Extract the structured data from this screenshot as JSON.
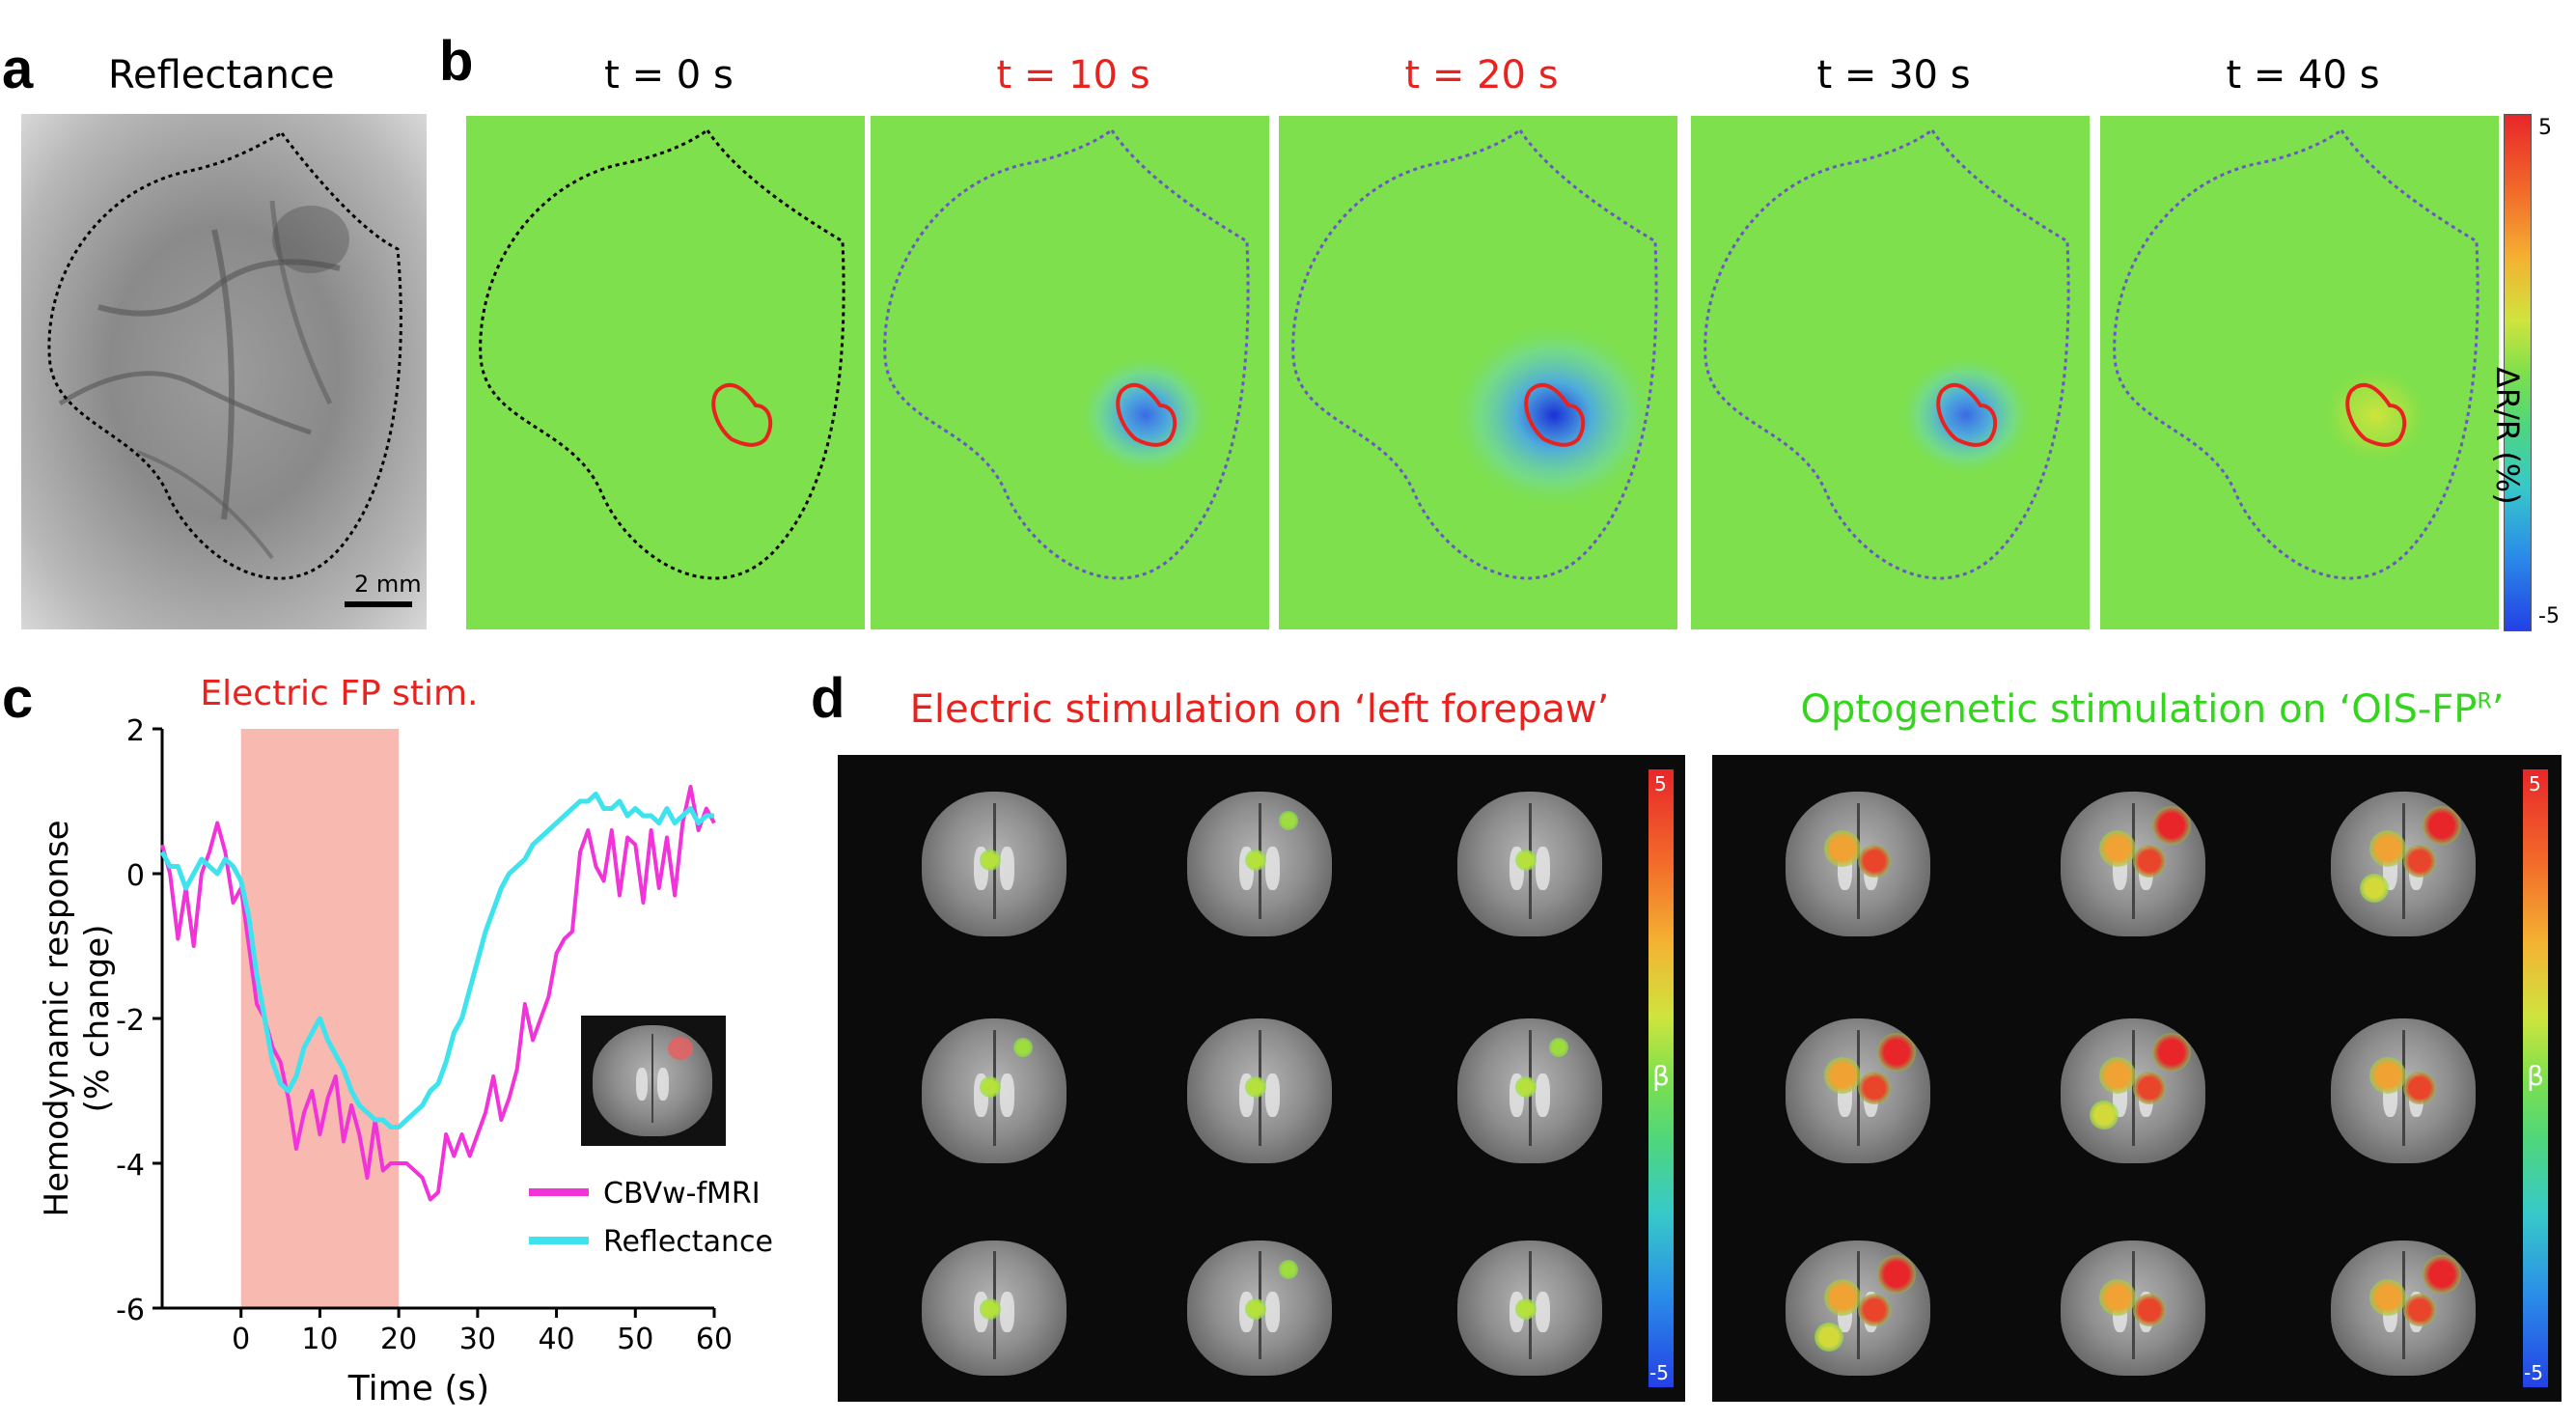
{
  "panel_labels": {
    "a": "a",
    "b": "b",
    "c": "c",
    "d": "d"
  },
  "panel_a": {
    "title": "Reflectance",
    "scale_bar": "2 mm"
  },
  "panel_b": {
    "times": [
      "t = 0 s",
      "t = 10 s",
      "t = 20 s",
      "t = 30 s",
      "t = 40 s"
    ],
    "time_colors": [
      "#000000",
      "#e8231f",
      "#e8231f",
      "#000000",
      "#000000"
    ],
    "response_level": [
      0,
      0.45,
      1.0,
      0.45,
      -0.25
    ],
    "colorbar": {
      "max": "5",
      "min": "-5",
      "label": "ΔR/R (%)"
    }
  },
  "panel_c": {
    "stim_label": "Electric FP stim.",
    "legend": [
      "CBVw-fMRI",
      "Reflectance"
    ]
  },
  "panel_d": {
    "left_title": "Electric stimulation on ‘left forepaw’",
    "right_title_main": "Optogenetic stimulation on ‘OIS-FP",
    "right_title_sup": "R",
    "right_title_end": "’",
    "colorbar": {
      "max": "5",
      "min": "-5",
      "label": "β"
    }
  },
  "colors": {
    "red_text": "#e8231f",
    "green_text": "#33d61c",
    "fmri": "#f233d9",
    "reflectance": "#3ee3ee",
    "stim_shade": "#f7b9b0"
  },
  "chart_data": {
    "type": "line",
    "title": "",
    "xlabel": "Time (s)",
    "ylabel": "Hemodynamic response (% change)",
    "xlim": [
      -10,
      60
    ],
    "ylim": [
      -6,
      2
    ],
    "xticks": [
      0,
      10,
      20,
      30,
      40,
      50,
      60
    ],
    "yticks": [
      2,
      0,
      -2,
      -4,
      -6
    ],
    "stimulus_window": [
      0,
      20
    ],
    "legend_position": "bottom-right",
    "series": [
      {
        "name": "CBVw-fMRI",
        "color": "#f233d9",
        "x": [
          -10,
          -9,
          -8,
          -7,
          -6,
          -5,
          -4,
          -3,
          -2,
          -1,
          0,
          1,
          2,
          3,
          4,
          5,
          6,
          7,
          8,
          9,
          10,
          11,
          12,
          13,
          14,
          15,
          16,
          17,
          18,
          19,
          20,
          21,
          22,
          23,
          24,
          25,
          26,
          27,
          28,
          29,
          30,
          31,
          32,
          33,
          34,
          35,
          36,
          37,
          38,
          39,
          40,
          41,
          42,
          43,
          44,
          45,
          46,
          47,
          48,
          49,
          50,
          51,
          52,
          53,
          54,
          55,
          56,
          57,
          58,
          59,
          60
        ],
        "y": [
          0.4,
          0.0,
          -0.9,
          -0.2,
          -1.0,
          0.0,
          0.3,
          0.7,
          0.3,
          -0.4,
          -0.2,
          -1.0,
          -1.8,
          -2.0,
          -2.4,
          -2.6,
          -3.1,
          -3.8,
          -3.3,
          -3.0,
          -3.6,
          -3.1,
          -2.8,
          -3.7,
          -3.2,
          -3.6,
          -4.2,
          -3.4,
          -4.1,
          -4.0,
          -4.0,
          -4.0,
          -4.1,
          -4.2,
          -4.5,
          -4.4,
          -3.6,
          -3.9,
          -3.6,
          -3.9,
          -3.6,
          -3.3,
          -2.8,
          -3.4,
          -3.1,
          -2.7,
          -1.8,
          -2.3,
          -2.0,
          -1.7,
          -1.1,
          -0.9,
          -0.8,
          0.3,
          0.6,
          0.1,
          -0.1,
          0.6,
          -0.3,
          0.5,
          0.4,
          -0.4,
          0.6,
          -0.2,
          0.5,
          -0.3,
          0.7,
          1.2,
          0.6,
          0.9,
          0.7
        ]
      },
      {
        "name": "Reflectance",
        "color": "#3ee3ee",
        "x": [
          -10,
          -9,
          -8,
          -7,
          -6,
          -5,
          -4,
          -3,
          -2,
          -1,
          0,
          1,
          2,
          3,
          4,
          5,
          6,
          7,
          8,
          9,
          10,
          11,
          12,
          13,
          14,
          15,
          16,
          17,
          18,
          19,
          20,
          21,
          22,
          23,
          24,
          25,
          26,
          27,
          28,
          29,
          30,
          31,
          32,
          33,
          34,
          35,
          36,
          37,
          38,
          39,
          40,
          41,
          42,
          43,
          44,
          45,
          46,
          47,
          48,
          49,
          50,
          51,
          52,
          53,
          54,
          55,
          56,
          57,
          58,
          59,
          60
        ],
        "y": [
          0.3,
          0.1,
          0.1,
          -0.2,
          0.0,
          0.2,
          0.1,
          0.0,
          0.2,
          0.1,
          -0.1,
          -0.6,
          -1.4,
          -2.0,
          -2.6,
          -2.9,
          -3.0,
          -2.8,
          -2.4,
          -2.2,
          -2.0,
          -2.3,
          -2.5,
          -2.7,
          -3.0,
          -3.2,
          -3.3,
          -3.4,
          -3.4,
          -3.5,
          -3.5,
          -3.4,
          -3.3,
          -3.2,
          -3.0,
          -2.9,
          -2.6,
          -2.2,
          -2.0,
          -1.6,
          -1.2,
          -0.8,
          -0.5,
          -0.2,
          0.0,
          0.1,
          0.2,
          0.4,
          0.5,
          0.6,
          0.7,
          0.8,
          0.9,
          1.0,
          1.0,
          1.1,
          0.9,
          0.9,
          1.0,
          0.8,
          0.9,
          0.8,
          0.8,
          0.7,
          0.9,
          0.7,
          0.8,
          0.9,
          0.7,
          0.8,
          0.8
        ]
      }
    ]
  }
}
